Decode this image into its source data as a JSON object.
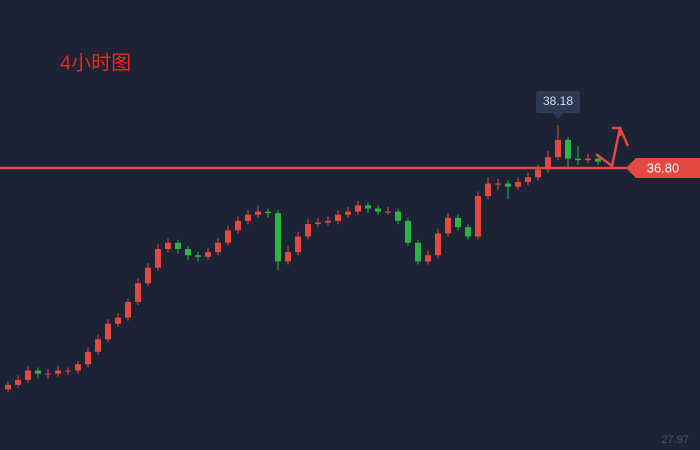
{
  "chart_data": {
    "type": "candlestick",
    "title": "4小时图",
    "open": [
      29.7,
      29.84,
      30.0,
      30.3,
      30.2,
      30.2,
      30.3,
      30.3,
      30.5,
      30.9,
      31.3,
      31.8,
      32.0,
      32.5,
      33.1,
      33.6,
      34.2,
      34.4,
      34.2,
      34.0,
      33.95,
      34.1,
      34.4,
      34.8,
      35.1,
      35.3,
      35.4,
      35.35,
      33.8,
      34.1,
      34.6,
      35.0,
      35.05,
      35.1,
      35.3,
      35.4,
      35.6,
      35.5,
      35.4,
      35.4,
      35.1,
      34.4,
      33.8,
      34.0,
      34.7,
      35.2,
      34.9,
      34.6,
      35.9,
      36.3,
      36.3,
      36.2,
      36.35,
      36.5,
      36.75,
      37.15,
      37.7,
      37.1,
      37.05,
      37.1
    ],
    "high": [
      29.95,
      30.15,
      30.45,
      30.4,
      30.35,
      30.45,
      30.4,
      30.6,
      31.05,
      31.45,
      31.95,
      32.15,
      32.6,
      33.25,
      33.75,
      34.35,
      34.55,
      34.5,
      34.3,
      34.1,
      34.25,
      34.55,
      34.95,
      35.25,
      35.45,
      35.6,
      35.5,
      35.45,
      34.3,
      34.75,
      35.15,
      35.2,
      35.25,
      35.45,
      35.55,
      35.75,
      35.7,
      35.6,
      35.55,
      35.5,
      35.2,
      34.5,
      34.15,
      34.85,
      35.35,
      35.3,
      35.0,
      36.05,
      36.5,
      36.45,
      36.4,
      36.5,
      36.65,
      36.9,
      37.35,
      38.18,
      37.8,
      37.5,
      37.25,
      37.2
    ],
    "low": [
      29.6,
      29.75,
      29.9,
      30.05,
      30.05,
      30.1,
      30.15,
      30.2,
      30.4,
      30.8,
      31.2,
      31.7,
      31.9,
      32.4,
      33.0,
      33.5,
      34.1,
      34.05,
      33.85,
      33.8,
      33.85,
      34.0,
      34.3,
      34.7,
      35.0,
      35.2,
      35.2,
      33.5,
      33.7,
      34.0,
      34.5,
      34.9,
      34.95,
      35.0,
      35.2,
      35.3,
      35.35,
      35.3,
      35.3,
      35.0,
      34.3,
      33.7,
      33.7,
      33.9,
      34.6,
      34.8,
      34.5,
      34.5,
      35.8,
      36.1,
      35.8,
      36.1,
      36.25,
      36.4,
      36.65,
      37.05,
      36.8,
      36.9,
      36.95,
      36.9
    ],
    "close": [
      29.84,
      30.0,
      30.3,
      30.2,
      30.2,
      30.3,
      30.3,
      30.5,
      30.9,
      31.3,
      31.8,
      32.0,
      32.5,
      33.1,
      33.6,
      34.2,
      34.4,
      34.2,
      34.0,
      33.95,
      34.1,
      34.4,
      34.8,
      35.1,
      35.3,
      35.4,
      35.35,
      33.8,
      34.1,
      34.6,
      35.0,
      35.05,
      35.1,
      35.3,
      35.4,
      35.6,
      35.5,
      35.4,
      35.4,
      35.1,
      34.4,
      33.8,
      34.0,
      34.7,
      35.2,
      34.9,
      34.6,
      35.9,
      36.3,
      36.3,
      36.2,
      36.35,
      36.5,
      36.75,
      37.15,
      37.7,
      37.1,
      37.05,
      37.1,
      37.0
    ],
    "up_color": "#e5483f",
    "down_color": "#2fb344",
    "ylim": [
      27.75,
      42.19
    ],
    "yticks": [
      27.97
    ],
    "price_line": {
      "value": 36.8,
      "label": "36.80",
      "color": "#e5483f"
    }
  }
}
